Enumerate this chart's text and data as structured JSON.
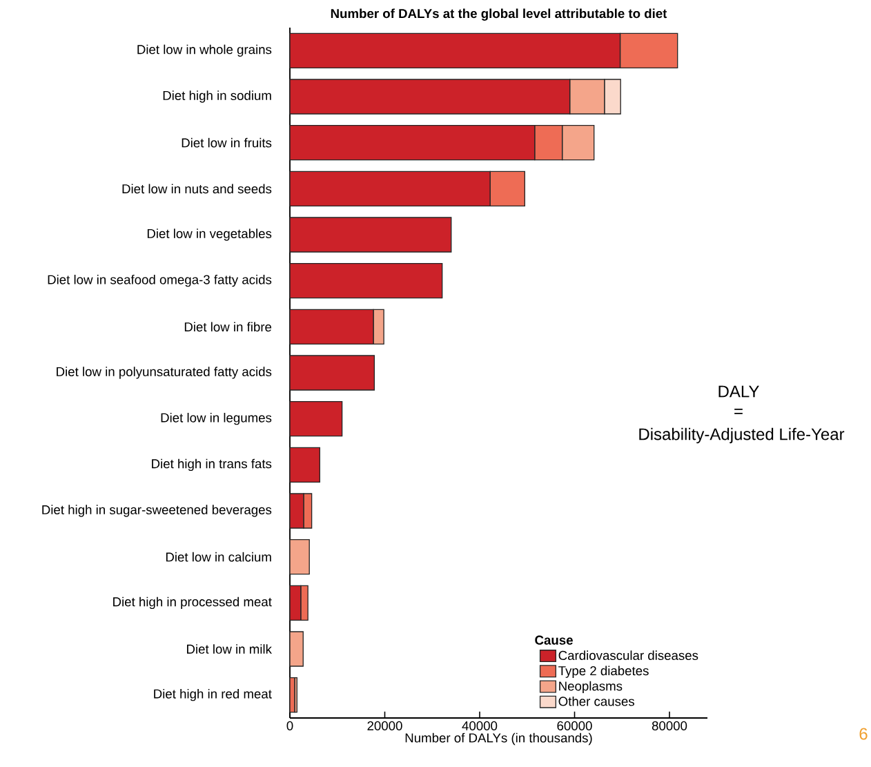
{
  "chart_data": {
    "type": "bar",
    "orientation": "horizontal",
    "stacked": true,
    "title": "Number of DALYs at the global level attributable to diet",
    "xlabel": "Number of DALYs (in thousands)",
    "legend_title": "Cause",
    "categories": [
      "Diet low in whole grains",
      "Diet high in sodium",
      "Diet low in fruits",
      "Diet low in nuts and seeds",
      "Diet low in vegetables",
      "Diet low in seafood omega-3 fatty acids",
      "Diet low in fibre",
      "Diet low in polyunsaturated fatty acids",
      "Diet low in legumes",
      "Diet high in trans fats",
      "Diet high in sugar-sweetened beverages",
      "Diet low in calcium",
      "Diet high in processed meat",
      "Diet low in milk",
      "Diet high in red meat"
    ],
    "series": [
      {
        "name": "Cardiovascular diseases",
        "color": "#cc2229",
        "values": [
          69600,
          59000,
          51600,
          42200,
          34000,
          32100,
          17600,
          17800,
          11000,
          6300,
          2900,
          null,
          2300,
          null,
          null
        ]
      },
      {
        "name": "Type 2 diabetes",
        "color": "#ee6c55",
        "values": [
          12100,
          null,
          5800,
          7300,
          null,
          null,
          null,
          null,
          null,
          null,
          1700,
          null,
          1500,
          null,
          1000
        ]
      },
      {
        "name": "Neoplasms",
        "color": "#f4a58a",
        "values": [
          null,
          7300,
          6700,
          null,
          null,
          null,
          2200,
          null,
          null,
          null,
          null,
          4100,
          null,
          2800,
          500
        ]
      },
      {
        "name": "Other causes",
        "color": "#fbd9cb",
        "values": [
          null,
          3400,
          null,
          null,
          null,
          null,
          null,
          null,
          null,
          null,
          null,
          null,
          null,
          null,
          null
        ]
      }
    ],
    "xlim": [
      0,
      88000
    ],
    "xticks": [
      0,
      20000,
      40000,
      60000,
      80000
    ],
    "grid": false,
    "legend": "bottom right",
    "annotations": [
      "DALY",
      "=",
      "Disability-Adjusted Life-Year",
      "6"
    ]
  }
}
